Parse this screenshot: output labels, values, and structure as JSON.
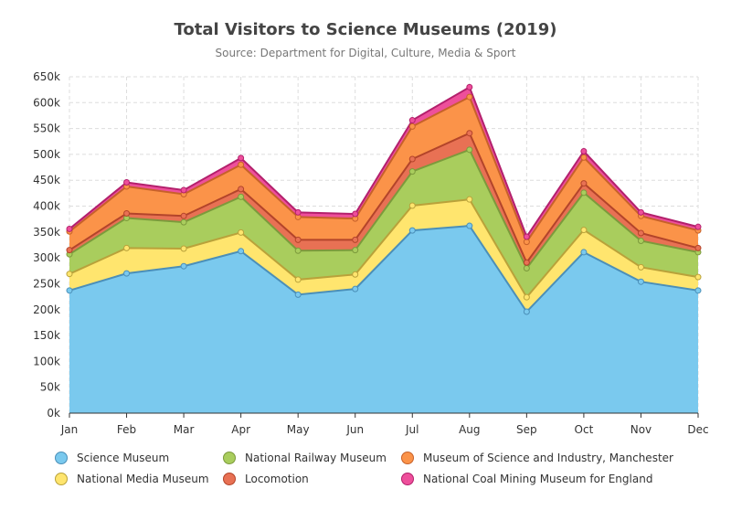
{
  "chart_data": {
    "type": "area",
    "stacked": true,
    "title": "Total Visitors to Science Museums (2019)",
    "subtitle": "Source: Department for Digital, Culture, Media & Sport",
    "xlabel": "",
    "ylabel": "",
    "categories": [
      "Jan",
      "Feb",
      "Mar",
      "Apr",
      "May",
      "Jun",
      "Jul",
      "Aug",
      "Sep",
      "Oct",
      "Nov",
      "Dec"
    ],
    "ylim": [
      0,
      650000
    ],
    "yticks": [
      0,
      50000,
      100000,
      150000,
      200000,
      250000,
      300000,
      350000,
      400000,
      450000,
      500000,
      550000,
      600000,
      650000
    ],
    "ytick_labels": [
      "0k",
      "50k",
      "100k",
      "150k",
      "200k",
      "250k",
      "300k",
      "350k",
      "400k",
      "450k",
      "500k",
      "550k",
      "600k",
      "650k"
    ],
    "grid": true,
    "legend_position": "bottom",
    "series": [
      {
        "name": "Science Museum",
        "color": "#7ac9ee",
        "line_color": "#4b8fb8",
        "values": [
          237000,
          270000,
          284000,
          313000,
          229000,
          240000,
          353000,
          362000,
          196000,
          311000,
          254000,
          237000
        ]
      },
      {
        "name": "National Media Museum",
        "color": "#ffe56e",
        "line_color": "#b9a23a",
        "values": [
          32000,
          49000,
          34000,
          36000,
          29000,
          28000,
          48000,
          51000,
          28000,
          43000,
          28000,
          26000
        ]
      },
      {
        "name": "National Railway Museum",
        "color": "#a9cd5d",
        "line_color": "#7c9a3c",
        "values": [
          38000,
          58000,
          51000,
          69000,
          56000,
          47000,
          66000,
          96000,
          56000,
          72000,
          51000,
          48000
        ]
      },
      {
        "name": "Locomotion",
        "color": "#e87154",
        "line_color": "#b3442a",
        "values": [
          8000,
          9000,
          12000,
          15000,
          21000,
          20000,
          24000,
          32000,
          11000,
          18000,
          15000,
          8000
        ]
      },
      {
        "name": "Museum of Science and Industry, Manchester",
        "color": "#fb9349",
        "line_color": "#c7612a",
        "values": [
          36000,
          52000,
          42000,
          47000,
          44000,
          41000,
          63000,
          70000,
          40000,
          50000,
          33000,
          34000
        ]
      },
      {
        "name": "National Coal Mining Museum for England",
        "color": "#ee4f9b",
        "line_color": "#b3206c",
        "values": [
          5000,
          8000,
          8000,
          13000,
          9000,
          9000,
          12000,
          19000,
          10000,
          12000,
          7000,
          7000
        ]
      }
    ]
  }
}
